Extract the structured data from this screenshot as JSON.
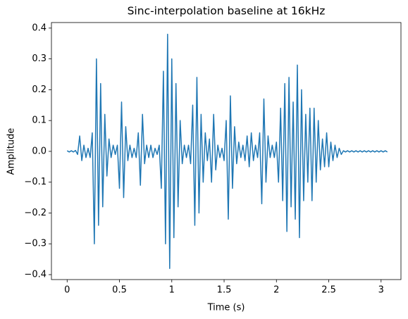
{
  "chart_data": {
    "type": "line",
    "title": "Sinc-interpolation baseline at 16kHz",
    "x_label": "Time (s)",
    "y_label": "Amplitude",
    "color": "#1f77b4",
    "x": [
      0.0,
      0.02,
      0.04,
      0.06,
      0.08,
      0.1,
      0.12,
      0.14,
      0.16,
      0.18,
      0.2,
      0.22,
      0.24,
      0.26,
      0.28,
      0.3,
      0.32,
      0.34,
      0.36,
      0.38,
      0.4,
      0.42,
      0.44,
      0.46,
      0.48,
      0.5,
      0.52,
      0.54,
      0.56,
      0.58,
      0.6,
      0.62,
      0.64,
      0.66,
      0.68,
      0.7,
      0.72,
      0.74,
      0.76,
      0.78,
      0.8,
      0.82,
      0.84,
      0.86,
      0.88,
      0.9,
      0.92,
      0.94,
      0.96,
      0.98,
      1.0,
      1.02,
      1.04,
      1.06,
      1.08,
      1.1,
      1.12,
      1.14,
      1.16,
      1.18,
      1.2,
      1.22,
      1.24,
      1.26,
      1.28,
      1.3,
      1.32,
      1.34,
      1.36,
      1.38,
      1.4,
      1.42,
      1.44,
      1.46,
      1.48,
      1.5,
      1.52,
      1.54,
      1.56,
      1.58,
      1.6,
      1.62,
      1.64,
      1.66,
      1.68,
      1.7,
      1.72,
      1.74,
      1.76,
      1.78,
      1.8,
      1.82,
      1.84,
      1.86,
      1.88,
      1.9,
      1.92,
      1.94,
      1.96,
      1.98,
      2.0,
      2.02,
      2.04,
      2.06,
      2.08,
      2.1,
      2.12,
      2.14,
      2.16,
      2.18,
      2.2,
      2.22,
      2.24,
      2.26,
      2.28,
      2.3,
      2.32,
      2.34,
      2.36,
      2.38,
      2.4,
      2.42,
      2.44,
      2.46,
      2.48,
      2.5,
      2.52,
      2.54,
      2.56,
      2.58,
      2.6,
      2.62,
      2.64,
      2.66,
      2.68,
      2.7,
      2.72,
      2.74,
      2.76,
      2.78,
      2.8,
      2.82,
      2.84,
      2.86,
      2.88,
      2.9,
      2.92,
      2.94,
      2.96,
      2.98,
      3.0,
      3.02,
      3.04,
      3.06
    ],
    "values": [
      0.002,
      -0.002,
      0.002,
      -0.002,
      0.003,
      -0.01,
      0.05,
      -0.03,
      0.02,
      -0.02,
      0.01,
      -0.02,
      0.06,
      -0.3,
      0.3,
      -0.24,
      0.22,
      -0.18,
      0.12,
      -0.08,
      0.04,
      -0.02,
      0.02,
      -0.01,
      0.02,
      -0.12,
      0.16,
      -0.15,
      0.08,
      -0.03,
      0.02,
      -0.02,
      0.01,
      -0.02,
      0.06,
      -0.11,
      0.12,
      -0.04,
      0.02,
      -0.02,
      0.02,
      -0.02,
      0.01,
      -0.01,
      0.02,
      -0.12,
      0.26,
      -0.3,
      0.38,
      -0.38,
      0.3,
      -0.28,
      0.22,
      -0.18,
      0.1,
      -0.04,
      0.02,
      -0.02,
      0.02,
      -0.04,
      0.15,
      -0.24,
      0.24,
      -0.2,
      0.12,
      -0.1,
      0.06,
      -0.03,
      0.04,
      -0.1,
      0.12,
      -0.06,
      0.02,
      -0.02,
      0.01,
      -0.03,
      0.1,
      -0.22,
      0.18,
      -0.12,
      0.08,
      -0.04,
      0.03,
      -0.02,
      0.02,
      -0.03,
      0.05,
      -0.05,
      0.06,
      -0.03,
      0.02,
      -0.02,
      0.06,
      -0.17,
      0.17,
      -0.1,
      0.05,
      -0.02,
      0.02,
      -0.02,
      0.03,
      -0.1,
      0.14,
      -0.16,
      0.22,
      -0.26,
      0.24,
      -0.18,
      0.16,
      -0.22,
      0.28,
      -0.28,
      0.2,
      -0.16,
      0.12,
      -0.1,
      0.14,
      -0.16,
      0.14,
      -0.1,
      0.1,
      -0.06,
      0.04,
      -0.05,
      0.06,
      -0.05,
      0.03,
      -0.03,
      0.02,
      -0.02,
      0.01,
      -0.01,
      0.002,
      -0.002,
      0.002,
      -0.002,
      0.002,
      -0.002,
      0.002,
      -0.002,
      0.002,
      -0.002,
      0.002,
      -0.002,
      0.002,
      -0.002,
      0.002,
      -0.002,
      0.002,
      -0.002,
      0.002,
      -0.002,
      0.002,
      -0.002
    ],
    "xlim": [
      -0.15,
      3.19
    ],
    "ylim": [
      -0.416,
      0.418
    ],
    "xticks": [
      0,
      0.5,
      1,
      1.5,
      2,
      2.5,
      3
    ],
    "yticks": [
      {
        "value": -0.4,
        "label": "−0.4"
      },
      {
        "value": -0.3,
        "label": "−0.3"
      },
      {
        "value": -0.2,
        "label": "−0.2"
      },
      {
        "value": -0.1,
        "label": "−0.1"
      },
      {
        "value": 0,
        "label": "0.0"
      },
      0.1,
      0.2,
      0.3,
      0.4
    ],
    "grid": false
  }
}
